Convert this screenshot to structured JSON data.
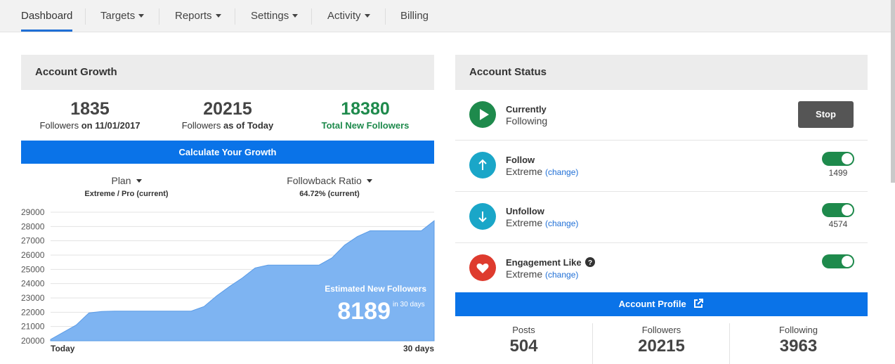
{
  "nav": {
    "items": [
      {
        "label": "Dashboard",
        "caret": false
      },
      {
        "label": "Targets",
        "caret": true
      },
      {
        "label": "Reports",
        "caret": true
      },
      {
        "label": "Settings",
        "caret": true
      },
      {
        "label": "Activity",
        "caret": true
      },
      {
        "label": "Billing",
        "caret": false
      }
    ],
    "active": "Dashboard"
  },
  "growth": {
    "title": "Account Growth",
    "stats": [
      {
        "value": "1835",
        "label_prefix": "Followers ",
        "label_bold": "on 11/01/2017"
      },
      {
        "value": "20215",
        "label_prefix": "Followers ",
        "label_bold": "as of Today"
      },
      {
        "value": "18380",
        "label_bold": "Total New Followers"
      }
    ],
    "calculate_label": "Calculate Your Growth",
    "plan": {
      "label": "Plan",
      "value": "Extreme / Pro (current)"
    },
    "ratio": {
      "label": "Followback Ratio",
      "value": "64.72% (current)"
    },
    "estimate": {
      "label": "Estimated New Followers",
      "value": "8189",
      "suffix": "in 30 days"
    },
    "x_start": "Today",
    "x_end": "30 days"
  },
  "chart_data": {
    "type": "area",
    "x": [
      0,
      2,
      3,
      4,
      5,
      6,
      7,
      8,
      9,
      10,
      11,
      12,
      13,
      14,
      15,
      16,
      17,
      18,
      19,
      20,
      21,
      22,
      23,
      24,
      25,
      26,
      27,
      28,
      29,
      30
    ],
    "y": [
      20100,
      21100,
      21950,
      22050,
      22080,
      22080,
      22080,
      22080,
      22080,
      22080,
      22080,
      22400,
      23150,
      23800,
      24400,
      25100,
      25300,
      25300,
      25300,
      25300,
      25300,
      25800,
      26700,
      27300,
      27700,
      27700,
      27700,
      27700,
      27700,
      28400
    ],
    "ylim": [
      20000,
      29000
    ],
    "yticks": [
      "29000",
      "28000",
      "27000",
      "26000",
      "25000",
      "24000",
      "23000",
      "22000",
      "21000",
      "20000"
    ],
    "xticklabels": [
      "Today",
      "30 days"
    ],
    "grid": true,
    "color": "#7eb4f2"
  },
  "status": {
    "title": "Account Status",
    "currently": {
      "title": "Currently",
      "sub": "Following",
      "button": "Stop"
    },
    "rows": [
      {
        "title": "Follow",
        "sub": "Extreme",
        "link": "(change)",
        "count": "1499",
        "color": "#1aa6c8",
        "icon": "arrow-up-icon"
      },
      {
        "title": "Unfollow",
        "sub": "Extreme",
        "link": "(change)",
        "count": "4574",
        "color": "#1aa6c8",
        "icon": "arrow-down-icon"
      },
      {
        "title": "Engagement Like",
        "sub": "Extreme",
        "link": "(change)",
        "count": "",
        "color": "#de3b2e",
        "icon": "heart-icon"
      }
    ],
    "profile_label": "Account Profile",
    "profile": [
      {
        "label": "Posts",
        "value": "504"
      },
      {
        "label": "Followers",
        "value": "20215"
      },
      {
        "label": "Following",
        "value": "3963"
      }
    ]
  },
  "colors": {
    "accent": "#0a73e8",
    "green": "#1e8a4c",
    "dark_button": "#555555"
  }
}
